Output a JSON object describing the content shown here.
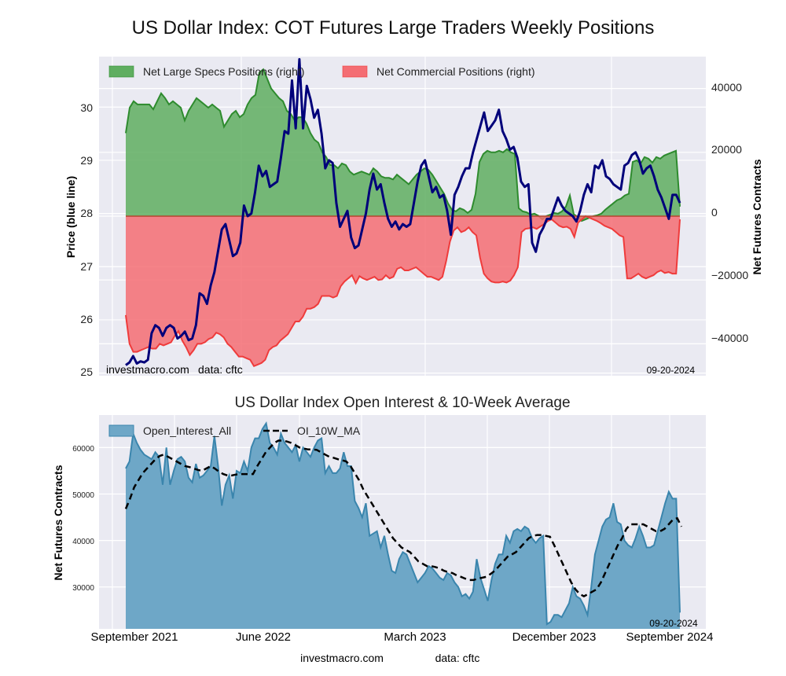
{
  "title": "US Dollar Index: COT Futures Large Traders Weekly Positions",
  "footer": {
    "site": "investmacro.com",
    "source": "data: cftc"
  },
  "chart_data": [
    {
      "type": "area",
      "title": "US Dollar Index: COT Futures Large Traders Weekly Positions",
      "ylabel_left": "Price (blue line)",
      "ylabel_right": "Net Futures Contracts",
      "ylim_left": [
        24.95,
        30.95
      ],
      "ylim_right": [
        -50000,
        50000
      ],
      "yticks_left": [
        "25",
        "26",
        "27",
        "28",
        "29",
        "30"
      ],
      "yticks_right": [
        "40000",
        "20000",
        "0",
        "−20000",
        "−40000"
      ],
      "grid": true,
      "legend": {
        "placement": "top-left",
        "entries": [
          "Net Large Specs Positions (right)",
          "Net Commercial Positions (right)"
        ]
      },
      "annotations": {
        "left": "investmacro.com    data: cftc",
        "right": "09-20-2024"
      },
      "colors": {
        "specs": "#2e8b2e",
        "specs_fill": "#5fae60",
        "commercial": "#ef3b3b",
        "commercial_fill": "#f46d73",
        "price": "#00007a"
      },
      "x_weeks": 157,
      "series": [
        {
          "name": "Net Large Specs Positions (right)",
          "axis": "right",
          "values": [
            26000,
            34000,
            36000,
            35000,
            35000,
            35000,
            35000,
            33500,
            36000,
            38500,
            37000,
            35000,
            36000,
            35000,
            34000,
            30000,
            33000,
            35000,
            37000,
            36000,
            35000,
            34000,
            35000,
            34000,
            33000,
            28000,
            30000,
            32000,
            33000,
            31000,
            32000,
            35000,
            37000,
            38000,
            45000,
            46000,
            43000,
            40000,
            38500,
            37000,
            36000,
            33000,
            32000,
            30000,
            31000,
            31000,
            29000,
            26000,
            24000,
            23000,
            20000,
            18500,
            16000,
            16000,
            15000,
            16500,
            16000,
            14000,
            13000,
            13500,
            14000,
            13500,
            13000,
            15000,
            14000,
            12500,
            12000,
            12000,
            11500,
            13000,
            12000,
            11000,
            10000,
            11500,
            13000,
            14000,
            15000,
            14500,
            13000,
            11000,
            9000,
            7000,
            4000,
            2000,
            1500,
            2500,
            2000,
            1000,
            2000,
            7000,
            17000,
            19500,
            20500,
            20000,
            20000,
            20500,
            20000,
            21000,
            20000,
            19500,
            2500,
            1500,
            1200,
            500,
            800,
            100,
            -1000,
            0,
            500,
            1000,
            800,
            1500,
            3000,
            6500,
            600,
            -300,
            -1500,
            -1000,
            -500,
            0,
            300,
            800,
            2000,
            3000,
            4000,
            5000,
            5500,
            6500,
            7000,
            17000,
            17500,
            16500,
            18500,
            18000,
            16800,
            18500,
            18000,
            19000,
            19500,
            20000,
            20500,
            3000
          ],
          "note": "weekly samples, right axis"
        },
        {
          "name": "Net Commercial Positions (right)",
          "axis": "right",
          "values": [
            -31000,
            -40000,
            -42500,
            -42500,
            -42000,
            -41500,
            -41000,
            -41500,
            -41500,
            -40000,
            -40500,
            -40000,
            -39500,
            -37500,
            -36000,
            -39000,
            -41000,
            -43500,
            -42000,
            -40000,
            -40000,
            -39500,
            -38500,
            -38000,
            -36500,
            -37000,
            -38000,
            -40000,
            -41000,
            -42500,
            -44000,
            -44000,
            -44500,
            -45000,
            -47000,
            -46500,
            -46000,
            -45000,
            -42000,
            -41000,
            -40500,
            -39000,
            -38000,
            -37000,
            -35000,
            -33000,
            -33000,
            -31500,
            -29000,
            -29000,
            -28500,
            -27500,
            -25000,
            -25000,
            -25000,
            -25500,
            -25000,
            -22000,
            -20500,
            -19500,
            -18500,
            -21000,
            -18800,
            -19500,
            -20000,
            -19500,
            -19000,
            -20000,
            -19800,
            -18500,
            -19500,
            -19000,
            -16500,
            -16000,
            -17000,
            -17000,
            -16500,
            -16000,
            -17000,
            -18000,
            -19000,
            -19000,
            -19500,
            -20000,
            -19000,
            -14000,
            -8000,
            -4500,
            -3500,
            -5000,
            -4500,
            -3500,
            -5000,
            -6000,
            -13000,
            -18000,
            -19500,
            -20500,
            -20800,
            -20800,
            -20500,
            -20800,
            -20200,
            -18500,
            -16000,
            -5000,
            -4000,
            -3800,
            -3500,
            -4000,
            -3200,
            -2500,
            -1500,
            -1000,
            -2000,
            -3000,
            -3500,
            -3300,
            -4000,
            -6500,
            -2000,
            -1000,
            0,
            -500,
            -1000,
            -1500,
            -2200,
            -3000,
            -3500,
            -4000,
            -5000,
            -6000,
            -6500,
            -19500,
            -19500,
            -18800,
            -18000,
            -19000,
            -19500,
            -19000,
            -18500,
            -17500,
            -17000,
            -17800,
            -17500,
            -18000,
            -18000,
            -1000
          ],
          "note": "weekly samples, right axis"
        },
        {
          "name": "Price (blue line)",
          "axis": "left",
          "values": [
            25.15,
            25.2,
            25.32,
            25.18,
            25.22,
            25.2,
            25.25,
            25.75,
            25.9,
            25.85,
            25.7,
            25.85,
            25.9,
            25.85,
            25.65,
            25.7,
            25.78,
            25.62,
            25.65,
            25.9,
            26.5,
            26.45,
            26.3,
            26.65,
            26.9,
            27.3,
            27.7,
            27.8,
            27.5,
            27.2,
            27.25,
            27.45,
            28.15,
            27.95,
            28.0,
            28.4,
            28.9,
            28.7,
            28.8,
            28.5,
            28.55,
            28.6,
            29.05,
            29.55,
            29.5,
            30.5,
            29.6,
            30.9,
            29.6,
            30.4,
            30.15,
            29.8,
            29.95,
            29.5,
            28.85,
            29.0,
            28.95,
            28.2,
            27.75,
            27.9,
            28.05,
            27.55,
            27.35,
            27.4,
            27.7,
            28.0,
            28.45,
            28.75,
            28.45,
            28.55,
            28.2,
            27.9,
            27.75,
            27.85,
            27.7,
            27.8,
            27.75,
            27.8,
            28.2,
            28.6,
            28.9,
            29.0,
            28.7,
            28.4,
            28.5,
            28.3,
            28.35,
            28.05,
            27.6,
            28.35,
            28.5,
            28.7,
            28.85,
            28.85,
            29.15,
            29.4,
            29.65,
            29.9,
            29.55,
            29.65,
            29.75,
            29.95,
            29.55,
            29.4,
            29.2,
            29.25,
            29.05,
            28.6,
            28.5,
            28.55,
            27.45,
            27.28,
            27.6,
            27.73,
            27.9,
            27.9,
            28.1,
            28.3,
            28.15,
            28.05,
            28.0,
            27.95,
            27.85,
            28.05,
            28.35,
            28.55,
            28.4,
            28.9,
            28.85,
            29.0,
            28.7,
            28.65,
            28.55,
            28.5,
            28.45,
            28.9,
            28.95,
            29.1,
            29.15,
            29.0,
            28.75,
            28.85,
            28.9,
            28.7,
            28.45,
            28.3,
            28.1,
            27.9,
            28.35,
            28.35,
            28.2
          ]
        }
      ]
    },
    {
      "type": "area",
      "title": "US Dollar Index Open Interest & 10-Week Average",
      "ylabel": "Net Futures Contracts",
      "ylim": [
        21000,
        67000
      ],
      "yticks": [
        "60000",
        "50000",
        "40000",
        "30000"
      ],
      "xticks": [
        "September 2021",
        "June 2022",
        "March 2023",
        "December 2023",
        "September 2024"
      ],
      "grid": true,
      "legend": {
        "placement": "top-left",
        "entries": [
          "Open_Interest_All",
          "OI_10W_MA"
        ]
      },
      "annotations": {
        "right": "09-20-2024"
      },
      "colors": {
        "oi": "#3a85ad",
        "oi_fill": "#6ea7c7",
        "ma": "#000000"
      },
      "series": [
        {
          "name": "Open_Interest_All",
          "values": [
            55500,
            57000,
            63000,
            61000,
            59500,
            58500,
            58000,
            57500,
            59000,
            58000,
            52000,
            60000,
            52000,
            55000,
            57500,
            58000,
            57000,
            53500,
            52500,
            56500,
            53500,
            54000,
            55000,
            56000,
            62500,
            56000,
            47500,
            52000,
            54000,
            49000,
            55000,
            54500,
            57000,
            55000,
            60000,
            62000,
            62000,
            64000,
            65200,
            61000,
            60000,
            58500,
            63000,
            61000,
            60000,
            59000,
            60500,
            57000,
            60000,
            59000,
            58000,
            60000,
            61500,
            62000,
            54500,
            56000,
            54500,
            54500,
            55500,
            59000,
            56000,
            56000,
            48500,
            47000,
            45000,
            48000,
            41000,
            41500,
            42000,
            38500,
            41000,
            37000,
            33500,
            33000,
            36000,
            37500,
            37000,
            35000,
            33000,
            31000,
            32000,
            33000,
            34500,
            34000,
            33000,
            32000,
            31500,
            33000,
            32500,
            31000,
            30000,
            28000,
            28500,
            27500,
            29000,
            36000,
            32000,
            29500,
            27000,
            31500,
            35000,
            37000,
            37000,
            41000,
            39500,
            42000,
            42500,
            42000,
            43000,
            42500,
            40500,
            39500,
            40500,
            41000,
            22000,
            22500,
            24000,
            24000,
            23500,
            25000,
            26500,
            30000,
            28000,
            27500,
            26000,
            24000,
            30000,
            37000,
            40000,
            43000,
            44500,
            45000,
            48000,
            44000,
            43500,
            40000,
            39000,
            38500,
            40500,
            43000,
            41000,
            38500,
            38500,
            39000,
            42000,
            45000,
            48000,
            50500,
            49000,
            49000,
            24500
          ],
          "note": "weekly samples"
        },
        {
          "name": "OI_10W_MA",
          "values": [
            46800,
            49000,
            51500,
            53000,
            54500,
            55500,
            56500,
            57500,
            58200,
            58500,
            58000,
            57500,
            57000,
            56500,
            56000,
            55800,
            55500,
            55200,
            55000,
            55500,
            56000,
            55500,
            54800,
            54300,
            54000,
            54000,
            54200,
            54300,
            54300,
            54300,
            54300,
            56000,
            57500,
            59000,
            60000,
            61000,
            61500,
            61500,
            61300,
            61000,
            60500,
            60000,
            59800,
            59600,
            59600,
            59500,
            59000,
            58500,
            58000,
            57800,
            57500,
            57300,
            57000,
            56000,
            54500,
            53000,
            51000,
            49500,
            48000,
            46500,
            45000,
            43500,
            42000,
            40500,
            39500,
            38500,
            38000,
            37500,
            36500,
            35500,
            35000,
            34500,
            34500,
            34300,
            34000,
            33500,
            33200,
            33000,
            32500,
            32200,
            31800,
            31500,
            31500,
            31800,
            32000,
            32200,
            32800,
            33500,
            34500,
            35500,
            36500,
            37000,
            37500,
            38500,
            39500,
            40500,
            41000,
            41200,
            41200,
            41000,
            40800,
            39000,
            37000,
            35000,
            33000,
            31000,
            29500,
            28500,
            28000,
            28500,
            29000,
            29500,
            31000,
            33000,
            35000,
            37000,
            39000,
            40500,
            42500,
            43500,
            43500,
            43500,
            43500,
            43000,
            42500,
            42000,
            42000,
            42500,
            43500,
            44500,
            44800,
            43000
          ],
          "note": "10-week moving average"
        }
      ]
    }
  ],
  "top": {
    "yticks_left": [
      "25",
      "26",
      "27",
      "28",
      "29",
      "30"
    ],
    "yticks_right": [
      "40000",
      "20000",
      "0",
      "−20000",
      "−40000"
    ],
    "ylabel_left": "Price (blue line)",
    "ylabel_right": "Net Futures Contracts",
    "legend_specs": "Net Large Specs Positions (right)",
    "legend_comm": "Net Commercial Positions (right)",
    "site": "investmacro.com",
    "source": "data: cftc",
    "date": "09-20-2024"
  },
  "bottom": {
    "title": "US Dollar Index Open Interest & 10-Week Average",
    "yticks": [
      "60000",
      "50000",
      "40000",
      "30000"
    ],
    "ylabel": "Net Futures Contracts",
    "legend_oi": "Open_Interest_All",
    "legend_ma": "OI_10W_MA",
    "date": "09-20-2024",
    "xticks": [
      "September 2021",
      "June 2022",
      "March 2023",
      "December 2023",
      "September 2024"
    ]
  }
}
